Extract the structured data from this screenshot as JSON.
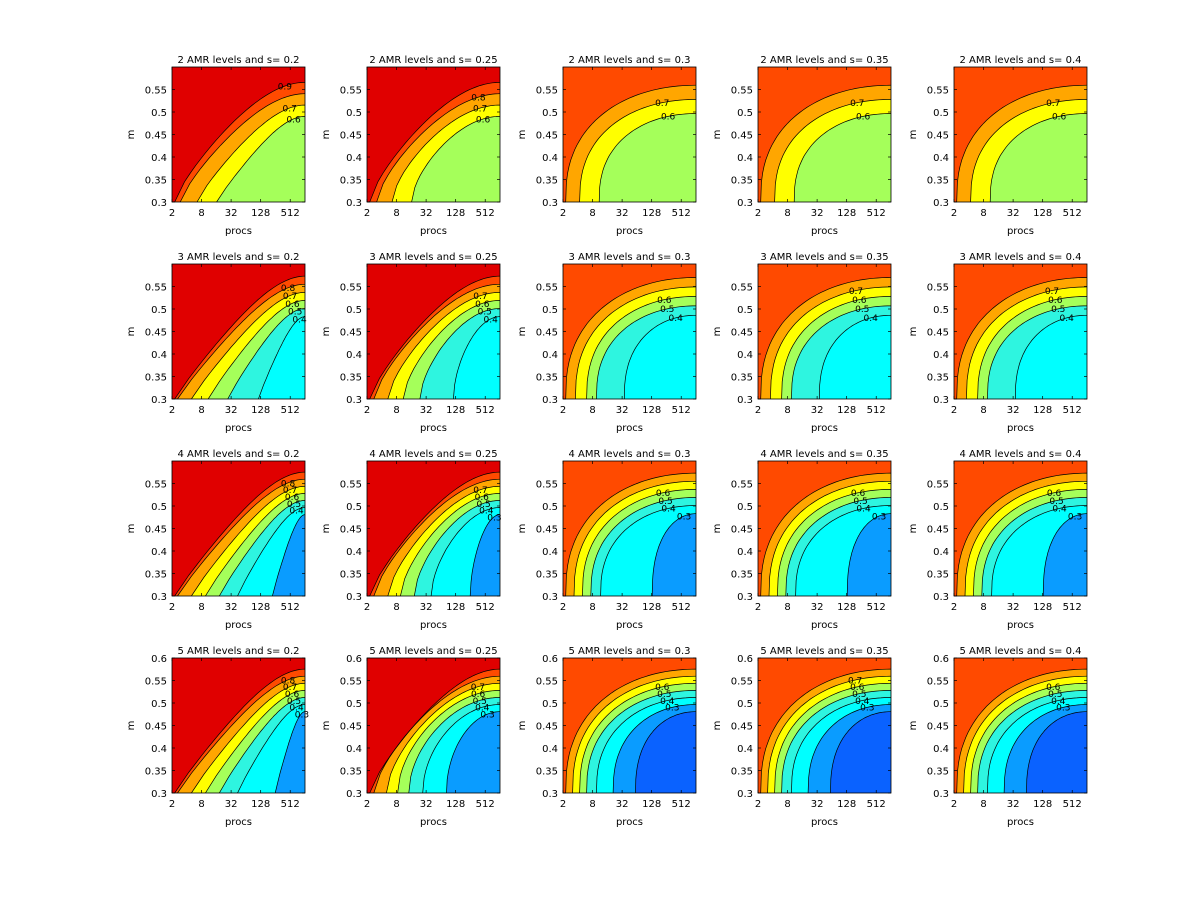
{
  "figure": {
    "x_ticks": [
      "2",
      "8",
      "32",
      "128",
      "512"
    ],
    "xlabel": "procs",
    "ylabel": "m",
    "y_ticks_rows_1_3": [
      "0.3",
      "0.35",
      "0.4",
      "0.45",
      "0.5",
      "0.55"
    ],
    "y_ticks_row_4": [
      "0.3",
      "0.35",
      "0.4",
      "0.45",
      "0.5",
      "0.55",
      "0.6"
    ]
  },
  "colors": {
    "levels": {
      "0.2": "#0a62ff",
      "0.3": "#0a9cff",
      "0.4": "#00ffff",
      "0.5": "#2ef5e0",
      "0.6": "#a5ff5a",
      "0.7": "#ffff00",
      "0.8": "#ffa600",
      "0.9": "#ff4a00",
      "1.0": "#e00000"
    }
  },
  "chart_data": [
    {
      "type": "contour",
      "title": "2 AMR levels and s= 0.2",
      "xlabel": "procs",
      "ylabel": "m",
      "contour_labels": [
        "0.9",
        "0.7",
        "0.6"
      ],
      "x_scale": "log2",
      "xlim": [
        2,
        1024
      ],
      "ylim": [
        0.3,
        0.6
      ],
      "regions": [
        "0.6",
        "0.7",
        "0.8",
        "0.9",
        "1.0"
      ],
      "boundaries": {
        "0.9": {
          "a": -0.08,
          "b": 0.7
        },
        "0.8": {
          "a": 0.04,
          "b": 0.7
        },
        "0.7": {
          "a": 0.16,
          "b": 0.65
        },
        "0.6": {
          "a": 0.3,
          "b": 0.6
        }
      }
    },
    {
      "type": "contour",
      "title": "2 AMR levels and s= 0.25",
      "xlabel": "procs",
      "ylabel": "m",
      "contour_labels": [
        "0.8",
        "0.7",
        "0.6"
      ],
      "x_scale": "log2",
      "xlim": [
        2,
        1024
      ],
      "ylim": [
        0.3,
        0.6
      ],
      "regions": [
        "0.6",
        "0.7",
        "0.8",
        "0.9",
        "1.0"
      ],
      "boundaries": {
        "0.9": {
          "a": -0.1,
          "b": 0.75
        },
        "0.8": {
          "a": 0.05,
          "b": 0.8
        },
        "0.7": {
          "a": 0.16,
          "b": 0.85
        },
        "0.6": {
          "a": 0.3,
          "b": 0.9
        }
      }
    },
    {
      "type": "contour",
      "title": "2 AMR levels and s= 0.3",
      "xlabel": "procs",
      "ylabel": "m",
      "contour_labels": [
        "0.7",
        "0.6"
      ],
      "x_scale": "log2",
      "xlim": [
        2,
        1024
      ],
      "ylim": [
        0.3,
        0.6
      ],
      "regions": [
        "0.6",
        "0.7",
        "0.8",
        "0.9"
      ],
      "boundaries": {
        "0.8": {
          "a": -0.02,
          "b": 1.4
        },
        "0.7": {
          "a": 0.1,
          "b": 1.4
        },
        "0.6": {
          "a": 0.24,
          "b": 1.4
        }
      }
    },
    {
      "type": "contour",
      "title": "2 AMR levels and s= 0.35",
      "xlabel": "procs",
      "ylabel": "m",
      "contour_labels": [
        "0.7",
        "0.6"
      ],
      "x_scale": "log2",
      "xlim": [
        2,
        1024
      ],
      "ylim": [
        0.3,
        0.6
      ],
      "regions": [
        "0.6",
        "0.7",
        "0.8",
        "0.9"
      ],
      "boundaries": {
        "0.8": {
          "a": -0.02,
          "b": 1.4
        },
        "0.7": {
          "a": 0.1,
          "b": 1.4
        },
        "0.6": {
          "a": 0.24,
          "b": 1.4
        }
      }
    },
    {
      "type": "contour",
      "title": "2 AMR levels and s= 0.4",
      "xlabel": "procs",
      "ylabel": "m",
      "contour_labels": [
        "0.7",
        "0.6"
      ],
      "x_scale": "log2",
      "xlim": [
        2,
        1024
      ],
      "ylim": [
        0.3,
        0.6
      ],
      "regions": [
        "0.6",
        "0.7",
        "0.8",
        "0.9"
      ],
      "boundaries": {
        "0.8": {
          "a": -0.02,
          "b": 1.4
        },
        "0.7": {
          "a": 0.1,
          "b": 1.4
        },
        "0.6": {
          "a": 0.24,
          "b": 1.4
        }
      }
    },
    {
      "type": "contour",
      "title": "3 AMR levels and s= 0.2",
      "xlabel": "procs",
      "ylabel": "m",
      "contour_labels": [
        "0.8",
        "0.7",
        "0.6",
        "0.5",
        "0.4"
      ],
      "x_scale": "log2",
      "xlim": [
        2,
        1024
      ],
      "ylim": [
        0.3,
        0.6
      ],
      "regions": [
        "0.4",
        "0.5",
        "0.6",
        "0.7",
        "0.8",
        "0.9",
        "1.0"
      ],
      "boundaries": {
        "0.9": {
          "a": -0.1,
          "b": 0.6
        },
        "0.8": {
          "a": 0.02,
          "b": 0.6
        },
        "0.7": {
          "a": 0.12,
          "b": 0.6
        },
        "0.6": {
          "a": 0.24,
          "b": 0.6
        },
        "0.5": {
          "a": 0.38,
          "b": 0.6
        },
        "0.4": {
          "a": 0.6,
          "b": 0.6
        }
      }
    },
    {
      "type": "contour",
      "title": "3 AMR levels and s= 0.25",
      "xlabel": "procs",
      "ylabel": "m",
      "contour_labels": [
        "0.7",
        "0.6",
        "0.5",
        "0.4"
      ],
      "x_scale": "log2",
      "xlim": [
        2,
        1024
      ],
      "ylim": [
        0.3,
        0.6
      ],
      "regions": [
        "0.4",
        "0.5",
        "0.6",
        "0.7",
        "0.8",
        "0.9",
        "1.0"
      ],
      "boundaries": {
        "0.9": {
          "a": -0.1,
          "b": 0.7
        },
        "0.8": {
          "a": 0.03,
          "b": 0.75
        },
        "0.7": {
          "a": 0.13,
          "b": 0.8
        },
        "0.6": {
          "a": 0.24,
          "b": 0.85
        },
        "0.5": {
          "a": 0.36,
          "b": 0.9
        },
        "0.4": {
          "a": 0.6,
          "b": 1.0
        }
      }
    },
    {
      "type": "contour",
      "title": "3 AMR levels and s= 0.3",
      "xlabel": "procs",
      "ylabel": "m",
      "contour_labels": [
        "0.6",
        "0.5",
        "0.4"
      ],
      "x_scale": "log2",
      "xlim": [
        2,
        1024
      ],
      "ylim": [
        0.3,
        0.6
      ],
      "regions": [
        "0.4",
        "0.5",
        "0.6",
        "0.7",
        "0.8",
        "0.9"
      ],
      "boundaries": {
        "0.8": {
          "a": -0.02,
          "b": 1.4
        },
        "0.7": {
          "a": 0.07,
          "b": 1.4
        },
        "0.6": {
          "a": 0.15,
          "b": 1.4
        },
        "0.5": {
          "a": 0.22,
          "b": 1.4
        },
        "0.4": {
          "a": 0.42,
          "b": 1.4
        }
      }
    },
    {
      "type": "contour",
      "title": "3 AMR levels and s= 0.35",
      "xlabel": "procs",
      "ylabel": "m",
      "contour_labels": [
        "0.7",
        "0.6",
        "0.5",
        "0.4"
      ],
      "x_scale": "log2",
      "xlim": [
        2,
        1024
      ],
      "ylim": [
        0.3,
        0.6
      ],
      "regions": [
        "0.4",
        "0.5",
        "0.6",
        "0.7",
        "0.8",
        "0.9"
      ],
      "boundaries": {
        "0.8": {
          "a": -0.02,
          "b": 1.4
        },
        "0.7": {
          "a": 0.07,
          "b": 1.4
        },
        "0.6": {
          "a": 0.15,
          "b": 1.4
        },
        "0.5": {
          "a": 0.22,
          "b": 1.4
        },
        "0.4": {
          "a": 0.42,
          "b": 1.4
        }
      }
    },
    {
      "type": "contour",
      "title": "3 AMR levels and s= 0.4",
      "xlabel": "procs",
      "ylabel": "m",
      "contour_labels": [
        "0.7",
        "0.6",
        "0.5",
        "0.4"
      ],
      "x_scale": "log2",
      "xlim": [
        2,
        1024
      ],
      "ylim": [
        0.3,
        0.6
      ],
      "regions": [
        "0.4",
        "0.5",
        "0.6",
        "0.7",
        "0.8",
        "0.9"
      ],
      "boundaries": {
        "0.8": {
          "a": -0.02,
          "b": 1.4
        },
        "0.7": {
          "a": 0.07,
          "b": 1.4
        },
        "0.6": {
          "a": 0.15,
          "b": 1.4
        },
        "0.5": {
          "a": 0.22,
          "b": 1.4
        },
        "0.4": {
          "a": 0.42,
          "b": 1.4
        }
      }
    },
    {
      "type": "contour",
      "title": "4 AMR levels and s= 0.2",
      "xlabel": "procs",
      "ylabel": "m",
      "contour_labels": [
        "0.8",
        "0.7",
        "0.6",
        "0.5",
        "0.4"
      ],
      "x_scale": "log2",
      "xlim": [
        2,
        1024
      ],
      "ylim": [
        0.3,
        0.6
      ],
      "regions": [
        "0.3",
        "0.4",
        "0.5",
        "0.6",
        "0.7",
        "0.8",
        "0.9",
        "1.0"
      ],
      "boundaries": {
        "0.9": {
          "a": -0.1,
          "b": 0.6
        },
        "0.8": {
          "a": 0.02,
          "b": 0.6
        },
        "0.7": {
          "a": 0.12,
          "b": 0.6
        },
        "0.6": {
          "a": 0.22,
          "b": 0.6
        },
        "0.5": {
          "a": 0.32,
          "b": 0.6
        },
        "0.4": {
          "a": 0.45,
          "b": 0.6
        },
        "0.3": {
          "a": 0.7,
          "b": 0.6
        }
      }
    },
    {
      "type": "contour",
      "title": "4 AMR levels and s= 0.25",
      "xlabel": "procs",
      "ylabel": "m",
      "contour_labels": [
        "0.7",
        "0.6",
        "0.5",
        "0.4",
        "0.3"
      ],
      "x_scale": "log2",
      "xlim": [
        2,
        1024
      ],
      "ylim": [
        0.3,
        0.6
      ],
      "regions": [
        "0.3",
        "0.4",
        "0.5",
        "0.6",
        "0.7",
        "0.8",
        "0.9",
        "1.0"
      ],
      "boundaries": {
        "0.9": {
          "a": -0.1,
          "b": 0.7
        },
        "0.8": {
          "a": 0.03,
          "b": 0.75
        },
        "0.7": {
          "a": 0.13,
          "b": 0.8
        },
        "0.6": {
          "a": 0.22,
          "b": 0.85
        },
        "0.5": {
          "a": 0.32,
          "b": 0.9
        },
        "0.4": {
          "a": 0.44,
          "b": 0.95
        },
        "0.3": {
          "a": 0.72,
          "b": 1.0
        }
      }
    },
    {
      "type": "contour",
      "title": "4 AMR levels and s= 0.3",
      "xlabel": "procs",
      "ylabel": "m",
      "contour_labels": [
        "0.6",
        "0.5",
        "0.4",
        "0.3"
      ],
      "x_scale": "log2",
      "xlim": [
        2,
        1024
      ],
      "ylim": [
        0.3,
        0.6
      ],
      "regions": [
        "0.3",
        "0.4",
        "0.5",
        "0.6",
        "0.7",
        "0.8",
        "0.9"
      ],
      "boundaries": {
        "0.8": {
          "a": -0.02,
          "b": 1.4
        },
        "0.7": {
          "a": 0.06,
          "b": 1.4
        },
        "0.6": {
          "a": 0.12,
          "b": 1.4
        },
        "0.5": {
          "a": 0.18,
          "b": 1.4
        },
        "0.4": {
          "a": 0.25,
          "b": 1.4
        },
        "0.3": {
          "a": 0.62,
          "b": 1.4
        }
      }
    },
    {
      "type": "contour",
      "title": "4 AMR levels and s= 0.35",
      "xlabel": "procs",
      "ylabel": "m",
      "contour_labels": [
        "0.6",
        "0.5",
        "0.4",
        "0.3"
      ],
      "x_scale": "log2",
      "xlim": [
        2,
        1024
      ],
      "ylim": [
        0.3,
        0.6
      ],
      "regions": [
        "0.3",
        "0.4",
        "0.5",
        "0.6",
        "0.7",
        "0.8",
        "0.9"
      ],
      "boundaries": {
        "0.8": {
          "a": -0.02,
          "b": 1.4
        },
        "0.7": {
          "a": 0.06,
          "b": 1.4
        },
        "0.6": {
          "a": 0.12,
          "b": 1.4
        },
        "0.5": {
          "a": 0.18,
          "b": 1.4
        },
        "0.4": {
          "a": 0.25,
          "b": 1.4
        },
        "0.3": {
          "a": 0.62,
          "b": 1.4
        }
      }
    },
    {
      "type": "contour",
      "title": "4 AMR levels and s= 0.4",
      "xlabel": "procs",
      "ylabel": "m",
      "contour_labels": [
        "0.6",
        "0.5",
        "0.4",
        "0.3"
      ],
      "x_scale": "log2",
      "xlim": [
        2,
        1024
      ],
      "ylim": [
        0.3,
        0.6
      ],
      "regions": [
        "0.3",
        "0.4",
        "0.5",
        "0.6",
        "0.7",
        "0.8",
        "0.9"
      ],
      "boundaries": {
        "0.8": {
          "a": -0.02,
          "b": 1.4
        },
        "0.7": {
          "a": 0.06,
          "b": 1.4
        },
        "0.6": {
          "a": 0.12,
          "b": 1.4
        },
        "0.5": {
          "a": 0.18,
          "b": 1.4
        },
        "0.4": {
          "a": 0.25,
          "b": 1.4
        },
        "0.3": {
          "a": 0.62,
          "b": 1.4
        }
      }
    },
    {
      "type": "contour",
      "title": "5 AMR levels and s= 0.2",
      "xlabel": "procs",
      "ylabel": "m",
      "contour_labels": [
        "0.8",
        "0.7",
        "0.6",
        "0.5",
        "0.4",
        "0.3"
      ],
      "x_scale": "log2",
      "xlim": [
        2,
        1024
      ],
      "ylim": [
        0.3,
        0.6
      ],
      "regions": [
        "0.3",
        "0.4",
        "0.5",
        "0.6",
        "0.7",
        "0.8",
        "0.9",
        "1.0"
      ],
      "boundaries": {
        "0.9": {
          "a": -0.1,
          "b": 0.6
        },
        "0.8": {
          "a": 0.02,
          "b": 0.6
        },
        "0.7": {
          "a": 0.12,
          "b": 0.6
        },
        "0.6": {
          "a": 0.22,
          "b": 0.6
        },
        "0.5": {
          "a": 0.32,
          "b": 0.6
        },
        "0.4": {
          "a": 0.45,
          "b": 0.6
        },
        "0.3": {
          "a": 0.72,
          "b": 0.6
        }
      }
    },
    {
      "type": "contour",
      "title": "5 AMR levels and s= 0.25",
      "xlabel": "procs",
      "ylabel": "m",
      "contour_labels": [
        "0.7",
        "0.6",
        "0.5",
        "0.4",
        "0.3"
      ],
      "x_scale": "log2",
      "xlim": [
        2,
        1024
      ],
      "ylim": [
        0.3,
        0.6
      ],
      "regions": [
        "0.3",
        "0.4",
        "0.5",
        "0.6",
        "0.7",
        "0.8",
        "0.9",
        "1.0"
      ],
      "boundaries": {
        "0.9": {
          "a": -0.1,
          "b": 0.7
        },
        "0.8": {
          "a": 0.03,
          "b": 0.8
        },
        "0.7": {
          "a": 0.12,
          "b": 0.9
        },
        "0.6": {
          "a": 0.2,
          "b": 1.0
        },
        "0.5": {
          "a": 0.28,
          "b": 1.05
        },
        "0.4": {
          "a": 0.38,
          "b": 1.1
        },
        "0.3": {
          "a": 0.55,
          "b": 1.15
        }
      }
    },
    {
      "type": "contour",
      "title": "5 AMR levels and s= 0.3",
      "xlabel": "procs",
      "ylabel": "m",
      "contour_labels": [
        "0.6",
        "0.5",
        "0.4",
        "0.3"
      ],
      "x_scale": "log2",
      "xlim": [
        2,
        1024
      ],
      "ylim": [
        0.3,
        0.6
      ],
      "regions": [
        "0.2",
        "0.3",
        "0.4",
        "0.5",
        "0.6",
        "0.7",
        "0.8",
        "0.9"
      ],
      "boundaries": {
        "0.8": {
          "a": -0.02,
          "b": 1.4
        },
        "0.7": {
          "a": 0.05,
          "b": 1.4
        },
        "0.6": {
          "a": 0.1,
          "b": 1.4
        },
        "0.5": {
          "a": 0.15,
          "b": 1.4
        },
        "0.4": {
          "a": 0.22,
          "b": 1.4
        },
        "0.3": {
          "a": 0.34,
          "b": 1.4
        },
        "0.2": {
          "a": 0.5,
          "b": 1.4
        }
      }
    },
    {
      "type": "contour",
      "title": "5 AMR levels and s= 0.35",
      "xlabel": "procs",
      "ylabel": "m",
      "contour_labels": [
        "0.7",
        "0.6",
        "0.5",
        "0.4",
        "0.3"
      ],
      "x_scale": "log2",
      "xlim": [
        2,
        1024
      ],
      "ylim": [
        0.3,
        0.6
      ],
      "regions": [
        "0.2",
        "0.3",
        "0.4",
        "0.5",
        "0.6",
        "0.7",
        "0.8",
        "0.9"
      ],
      "boundaries": {
        "0.8": {
          "a": -0.02,
          "b": 1.4
        },
        "0.7": {
          "a": 0.05,
          "b": 1.4
        },
        "0.6": {
          "a": 0.1,
          "b": 1.4
        },
        "0.5": {
          "a": 0.15,
          "b": 1.4
        },
        "0.4": {
          "a": 0.22,
          "b": 1.4
        },
        "0.3": {
          "a": 0.34,
          "b": 1.4
        },
        "0.2": {
          "a": 0.5,
          "b": 1.4
        }
      }
    },
    {
      "type": "contour",
      "title": "5 AMR levels and s= 0.4",
      "xlabel": "procs",
      "ylabel": "m",
      "contour_labels": [
        "0.6",
        "0.5",
        "0.4",
        "0.3"
      ],
      "x_scale": "log2",
      "xlim": [
        2,
        1024
      ],
      "ylim": [
        0.3,
        0.6
      ],
      "regions": [
        "0.2",
        "0.3",
        "0.4",
        "0.5",
        "0.6",
        "0.7",
        "0.8",
        "0.9"
      ],
      "boundaries": {
        "0.8": {
          "a": -0.02,
          "b": 1.4
        },
        "0.7": {
          "a": 0.05,
          "b": 1.4
        },
        "0.6": {
          "a": 0.1,
          "b": 1.4
        },
        "0.5": {
          "a": 0.15,
          "b": 1.4
        },
        "0.4": {
          "a": 0.22,
          "b": 1.4
        },
        "0.3": {
          "a": 0.34,
          "b": 1.4
        },
        "0.2": {
          "a": 0.5,
          "b": 1.4
        }
      }
    }
  ]
}
